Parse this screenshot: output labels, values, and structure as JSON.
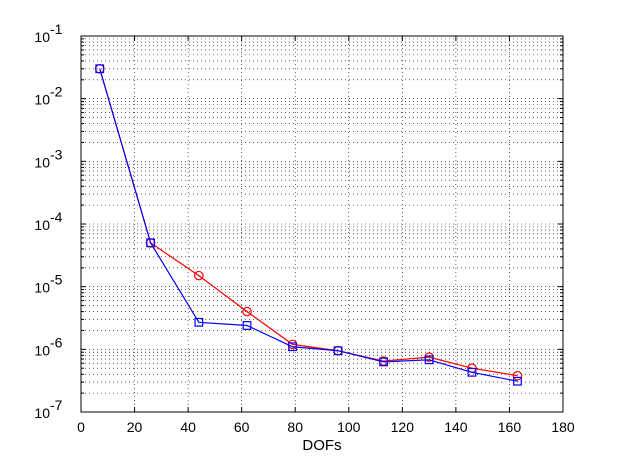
{
  "chart_data": {
    "type": "line",
    "title": "",
    "xlabel": "DOFs",
    "ylabel": "",
    "xlim": [
      0,
      180
    ],
    "ylim": [
      1e-07,
      0.1
    ],
    "yscale": "log",
    "grid": true,
    "grid_style": "dotted",
    "x_ticks": [
      0,
      20,
      40,
      60,
      80,
      100,
      120,
      140,
      160,
      180
    ],
    "x_tick_labels": [
      "0",
      "20",
      "40",
      "60",
      "80",
      "100",
      "120",
      "140",
      "160",
      "180"
    ],
    "y_ticks": [
      {
        "value": 1e-07,
        "mantissa": "10",
        "exponent": "-7"
      },
      {
        "value": 1e-06,
        "mantissa": "10",
        "exponent": "-6"
      },
      {
        "value": 1e-05,
        "mantissa": "10",
        "exponent": "-5"
      },
      {
        "value": 0.0001,
        "mantissa": "10",
        "exponent": "-4"
      },
      {
        "value": 0.001,
        "mantissa": "10",
        "exponent": "-3"
      },
      {
        "value": 0.01,
        "mantissa": "10",
        "exponent": "-2"
      },
      {
        "value": 0.1,
        "mantissa": "10",
        "exponent": "-1"
      }
    ],
    "series": [
      {
        "color": "#ff0000",
        "marker": "circle",
        "x": [
          7,
          26,
          44,
          62,
          79,
          96,
          113,
          130,
          146,
          163
        ],
        "y": [
          0.03,
          5e-05,
          1.5e-05,
          4e-06,
          1.2e-06,
          9.5e-07,
          6.5e-07,
          7.5e-07,
          5e-07,
          3.8e-07
        ]
      },
      {
        "color": "#0000ff",
        "marker": "square",
        "x": [
          7,
          26,
          44,
          62,
          79,
          96,
          113,
          130,
          146,
          163
        ],
        "y": [
          0.03,
          5e-05,
          2.7e-06,
          2.4e-06,
          1.1e-06,
          9.5e-07,
          6.3e-07,
          6.8e-07,
          4.3e-07,
          3.1e-07
        ]
      }
    ]
  }
}
